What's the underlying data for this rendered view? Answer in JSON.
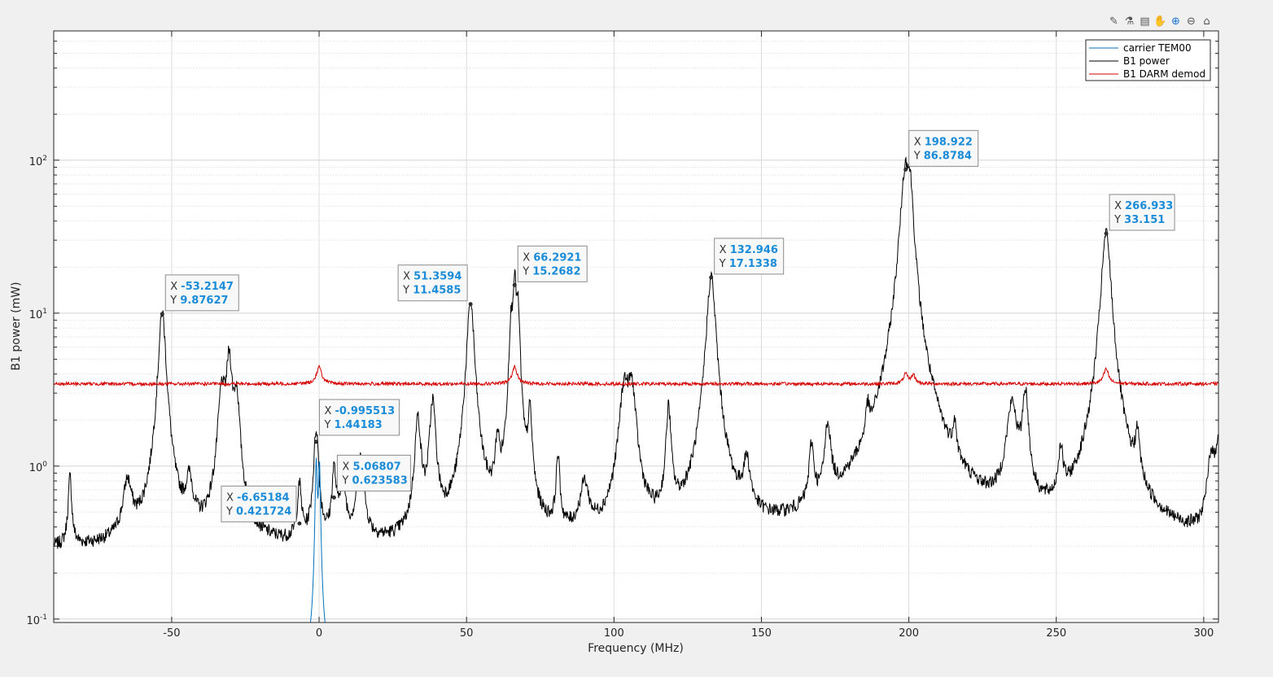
{
  "toolbar": {
    "icons": [
      "export-icon",
      "brush-icon",
      "datatip-icon",
      "pan-icon",
      "zoom-in-icon",
      "zoom-out-icon",
      "home-icon"
    ]
  },
  "chart_data": {
    "type": "line",
    "xlabel": "Frequency (MHz)",
    "ylabel": "B1 power (mW)",
    "xlim": [
      -90,
      305
    ],
    "ylim": [
      0.095,
      700
    ],
    "yscale": "log",
    "grid": true,
    "minor_grid_y": true,
    "legend_position": "top-right",
    "x_ticks": [
      -50,
      0,
      50,
      100,
      150,
      200,
      250,
      300
    ],
    "x_tick_labels": [
      "-50",
      "0",
      "50",
      "100",
      "150",
      "200",
      "250",
      "300"
    ],
    "y_ticks": [
      0.1,
      1,
      10,
      100
    ],
    "y_tick_labels": [
      {
        "base": "10",
        "exp": "-1"
      },
      {
        "base": "10",
        "exp": "0"
      },
      {
        "base": "10",
        "exp": "1"
      },
      {
        "base": "10",
        "exp": "2"
      }
    ],
    "series": [
      {
        "name": "carrier TEM00",
        "color": "#0072bd",
        "baseline": 0.05,
        "peaks": [
          [
            -0.99,
            1.0,
            0.35
          ],
          [
            0.12,
            0.97,
            0.35
          ]
        ]
      },
      {
        "name": "B1 power",
        "color": "#000000",
        "baseline": 0.28,
        "peaks": [
          [
            -84.5,
            0.55,
            0.6
          ],
          [
            -65,
            0.45,
            1.5
          ],
          [
            -53.2,
            9.88,
            1.2
          ],
          [
            -44,
            0.42,
            1.2
          ],
          [
            -33,
            2.6,
            1.2
          ],
          [
            -30.5,
            4.7,
            1.0
          ],
          [
            -28,
            2.4,
            1.0
          ],
          [
            -6.65,
            0.42,
            0.7
          ],
          [
            -0.99,
            1.44,
            0.8
          ],
          [
            5.07,
            0.62,
            0.7
          ],
          [
            8,
            0.5,
            1.0
          ],
          [
            14,
            0.8,
            1.2
          ],
          [
            33.5,
            1.7,
            1.0
          ],
          [
            38.5,
            2.3,
            1.0
          ],
          [
            51.36,
            11.46,
            1.2
          ],
          [
            60.5,
            0.9,
            0.7
          ],
          [
            65,
            6,
            0.6
          ],
          [
            66.29,
            15.27,
            0.7
          ],
          [
            67.5,
            8,
            0.6
          ],
          [
            71.5,
            1.7,
            0.7
          ],
          [
            81,
            0.8,
            0.6
          ],
          [
            90,
            0.4,
            1.5
          ],
          [
            103.5,
            2.8,
            1.6
          ],
          [
            106,
            2.7,
            1.4
          ],
          [
            118.5,
            2.0,
            0.8
          ],
          [
            132.95,
            17.13,
            1.4
          ],
          [
            145,
            0.6,
            1.2
          ],
          [
            167,
            0.85,
            0.8
          ],
          [
            172.5,
            1.3,
            1.0
          ],
          [
            186,
            0.9,
            0.6
          ],
          [
            198.92,
            86.88,
            1.6
          ],
          [
            200.5,
            40,
            1.0
          ],
          [
            215.5,
            0.85,
            0.6
          ],
          [
            235,
            2.0,
            1.8
          ],
          [
            239.5,
            2.5,
            1.0
          ],
          [
            251.5,
            0.7,
            0.8
          ],
          [
            266.93,
            33.15,
            1.5
          ],
          [
            277.5,
            0.85,
            0.8
          ],
          [
            302.5,
            0.8,
            1.2
          ],
          [
            305,
            1.15,
            1.0
          ]
        ],
        "markers": [
          {
            "x": -53.2147,
            "y": 9.87627
          },
          {
            "x": -6.65184,
            "y": 0.421724
          },
          {
            "x": -0.995513,
            "y": 1.44183
          },
          {
            "x": 5.06807,
            "y": 0.623583
          },
          {
            "x": 51.3594,
            "y": 11.4585
          },
          {
            "x": 66.2921,
            "y": 15.2682
          },
          {
            "x": 132.946,
            "y": 17.1338
          },
          {
            "x": 198.922,
            "y": 86.8784
          },
          {
            "x": 266.933,
            "y": 33.151
          }
        ]
      },
      {
        "name": "B1 DARM demod",
        "color": "#d40000",
        "baseline": 3.45,
        "peaks": [
          [
            0,
            1.0,
            1.0
          ],
          [
            66.3,
            1.0,
            1.0
          ],
          [
            198.9,
            0.55,
            0.8
          ],
          [
            201.5,
            0.5,
            0.8
          ],
          [
            266.9,
            0.85,
            1.0
          ]
        ]
      }
    ],
    "datatips": [
      {
        "x": "-53.2147",
        "y": "9.87627"
      },
      {
        "x": "-6.65184",
        "y": "0.421724"
      },
      {
        "x": "-0.995513",
        "y": "1.44183"
      },
      {
        "x": "5.06807",
        "y": "0.623583"
      },
      {
        "x": "51.3594",
        "y": "11.4585"
      },
      {
        "x": "66.2921",
        "y": "15.2682"
      },
      {
        "x": "132.946",
        "y": "17.1338"
      },
      {
        "x": "198.922",
        "y": "86.8784"
      },
      {
        "x": "266.933",
        "y": "33.151"
      }
    ]
  }
}
